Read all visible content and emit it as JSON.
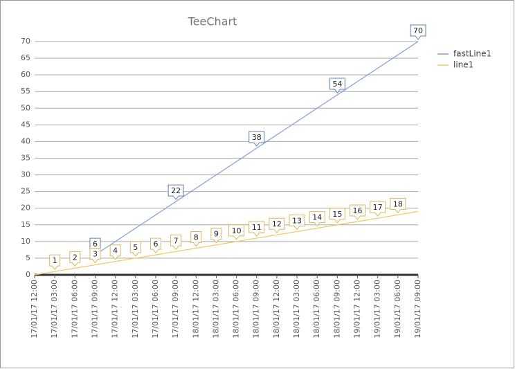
{
  "chart_data": {
    "type": "line",
    "title": "TeeChart",
    "categories": [
      "17/01/17 12:00",
      "17/01/17 03:00",
      "17/01/17 06:00",
      "17/01/17 09:00",
      "17/01/17 12:00",
      "17/01/17 03:00",
      "17/01/17 06:00",
      "17/01/17 09:00",
      "18/01/17 12:00",
      "18/01/17 03:00",
      "18/01/17 06:00",
      "18/01/17 09:00",
      "18/01/17 12:00",
      "18/01/17 03:00",
      "18/01/17 06:00",
      "18/01/17 09:00",
      "19/01/17 12:00",
      "19/01/17 03:00",
      "19/01/17 06:00",
      "19/01/17 09:00"
    ],
    "series": [
      {
        "name": "fastLine1",
        "color": "#7f9fd4",
        "values": [
          null,
          null,
          null,
          6,
          10,
          14,
          18,
          22,
          26,
          30,
          34,
          38,
          42,
          46,
          50,
          54,
          58,
          62,
          66,
          70
        ],
        "value_labels": [
          null,
          null,
          null,
          "6",
          null,
          null,
          null,
          "22",
          null,
          null,
          null,
          "38",
          null,
          null,
          null,
          "54",
          null,
          null,
          null,
          "70"
        ]
      },
      {
        "name": "line1",
        "color": "#f4c75a",
        "values": [
          0,
          1,
          2,
          3,
          4,
          5,
          6,
          7,
          8,
          9,
          10,
          11,
          12,
          13,
          14,
          15,
          16,
          17,
          18,
          19
        ],
        "value_labels": [
          null,
          "1",
          "2",
          "3",
          "4",
          "5",
          "6",
          "7",
          "8",
          "9",
          "10",
          "11",
          "12",
          "13",
          "14",
          "15",
          "16",
          "17",
          "18",
          null
        ]
      }
    ],
    "ylim": [
      0,
      70
    ],
    "yticks": [
      0,
      5,
      10,
      15,
      20,
      25,
      30,
      35,
      40,
      45,
      50,
      55,
      60,
      65,
      70
    ],
    "grid": true,
    "legend": "right"
  }
}
